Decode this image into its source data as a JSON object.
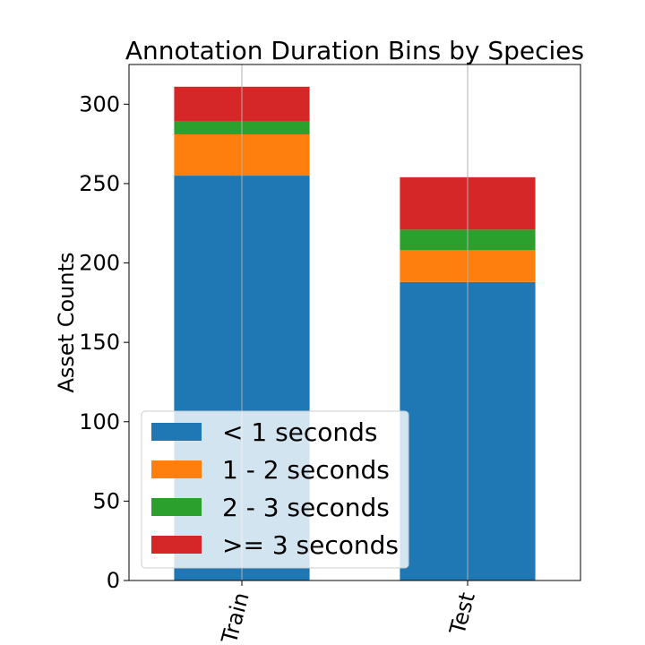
{
  "chart_data": {
    "type": "bar",
    "stacked": true,
    "title": "Annotation Duration Bins by Species",
    "xlabel": "",
    "ylabel": "Asset Counts",
    "categories": [
      "Train",
      "Test"
    ],
    "series": [
      {
        "name": "< 1 seconds",
        "values": [
          255,
          188
        ],
        "color": "#1f77b4"
      },
      {
        "name": "1 - 2 seconds",
        "values": [
          26,
          20
        ],
        "color": "#ff7f0e"
      },
      {
        "name": "2 - 3 seconds",
        "values": [
          8,
          13
        ],
        "color": "#2ca02c"
      },
      {
        "name": ">= 3 seconds",
        "values": [
          22,
          33
        ],
        "color": "#d62728"
      }
    ],
    "ylim": [
      0,
      325
    ],
    "yticks": [
      0,
      50,
      100,
      150,
      200,
      250,
      300
    ],
    "grid": "vertical",
    "legend_position": "lower-left"
  }
}
